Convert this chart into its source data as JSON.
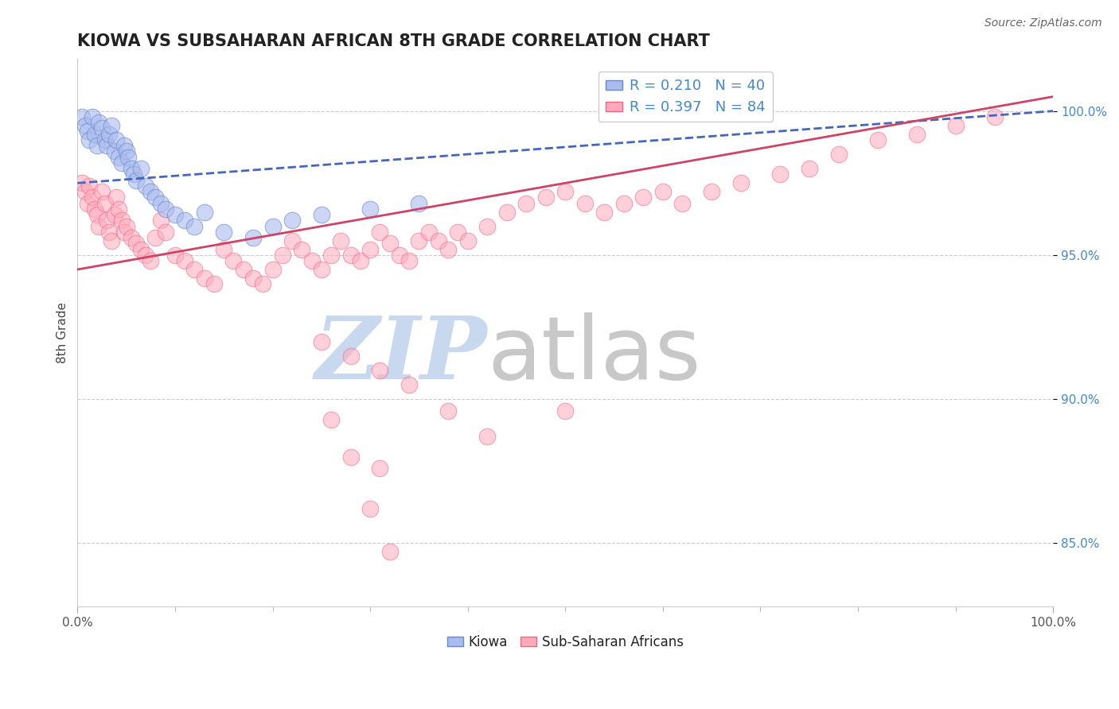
{
  "title": "KIOWA VS SUBSAHARAN AFRICAN 8TH GRADE CORRELATION CHART",
  "source_text": "Source: ZipAtlas.com",
  "ylabel": "8th Grade",
  "legend_labels": [
    "Kiowa",
    "Sub-Saharan Africans"
  ],
  "legend_r_n": [
    {
      "r": 0.21,
      "n": 40
    },
    {
      "r": 0.397,
      "n": 84
    }
  ],
  "x_min": 0.0,
  "x_max": 1.0,
  "y_min": 0.828,
  "y_max": 1.018,
  "y_ticks": [
    0.85,
    0.9,
    0.95,
    1.0
  ],
  "y_tick_labels": [
    "85.0%",
    "90.0%",
    "95.0%",
    "100.0%"
  ],
  "x_tick_labels": [
    "0.0%",
    "100.0%"
  ],
  "blue_color": "#aabbee",
  "pink_color": "#ffaabb",
  "blue_edge_color": "#6688cc",
  "pink_edge_color": "#ee6688",
  "blue_line_color": "#4466bb",
  "pink_line_color": "#cc4466",
  "watermark_zip_color": "#c8d8ee",
  "watermark_atlas_color": "#c8c8c8",
  "kiowa_x": [
    0.005,
    0.008,
    0.01,
    0.012,
    0.015,
    0.018,
    0.02,
    0.022,
    0.025,
    0.028,
    0.03,
    0.032,
    0.035,
    0.038,
    0.04,
    0.042,
    0.045,
    0.048,
    0.05,
    0.052,
    0.055,
    0.058,
    0.06,
    0.065,
    0.07,
    0.075,
    0.08,
    0.085,
    0.09,
    0.1,
    0.11,
    0.12,
    0.13,
    0.15,
    0.18,
    0.2,
    0.22,
    0.25,
    0.3,
    0.35
  ],
  "kiowa_y": [
    0.998,
    0.995,
    0.993,
    0.99,
    0.998,
    0.992,
    0.988,
    0.996,
    0.994,
    0.99,
    0.988,
    0.992,
    0.995,
    0.986,
    0.99,
    0.984,
    0.982,
    0.988,
    0.986,
    0.984,
    0.98,
    0.978,
    0.976,
    0.98,
    0.974,
    0.972,
    0.97,
    0.968,
    0.966,
    0.964,
    0.962,
    0.96,
    0.965,
    0.958,
    0.956,
    0.96,
    0.962,
    0.964,
    0.966,
    0.968
  ],
  "pink_x": [
    0.005,
    0.008,
    0.01,
    0.012,
    0.015,
    0.018,
    0.02,
    0.022,
    0.025,
    0.028,
    0.03,
    0.032,
    0.035,
    0.038,
    0.04,
    0.042,
    0.045,
    0.048,
    0.05,
    0.055,
    0.06,
    0.065,
    0.07,
    0.075,
    0.08,
    0.085,
    0.09,
    0.1,
    0.11,
    0.12,
    0.13,
    0.14,
    0.15,
    0.16,
    0.17,
    0.18,
    0.19,
    0.2,
    0.21,
    0.22,
    0.23,
    0.24,
    0.25,
    0.26,
    0.27,
    0.28,
    0.29,
    0.3,
    0.31,
    0.32,
    0.33,
    0.34,
    0.35,
    0.36,
    0.37,
    0.38,
    0.39,
    0.4,
    0.42,
    0.44,
    0.46,
    0.48,
    0.5,
    0.52,
    0.54,
    0.56,
    0.58,
    0.6,
    0.62,
    0.65,
    0.68,
    0.72,
    0.75,
    0.78,
    0.82,
    0.86,
    0.9,
    0.94,
    0.25,
    0.28,
    0.31,
    0.34,
    0.38,
    0.42
  ],
  "pink_y": [
    0.975,
    0.972,
    0.968,
    0.974,
    0.97,
    0.966,
    0.964,
    0.96,
    0.972,
    0.968,
    0.962,
    0.958,
    0.955,
    0.964,
    0.97,
    0.966,
    0.962,
    0.958,
    0.96,
    0.956,
    0.954,
    0.952,
    0.95,
    0.948,
    0.956,
    0.962,
    0.958,
    0.95,
    0.948,
    0.945,
    0.942,
    0.94,
    0.952,
    0.948,
    0.945,
    0.942,
    0.94,
    0.945,
    0.95,
    0.955,
    0.952,
    0.948,
    0.945,
    0.95,
    0.955,
    0.95,
    0.948,
    0.952,
    0.958,
    0.954,
    0.95,
    0.948,
    0.955,
    0.958,
    0.955,
    0.952,
    0.958,
    0.955,
    0.96,
    0.965,
    0.968,
    0.97,
    0.972,
    0.968,
    0.965,
    0.968,
    0.97,
    0.972,
    0.968,
    0.972,
    0.975,
    0.978,
    0.98,
    0.985,
    0.99,
    0.992,
    0.995,
    0.998,
    0.92,
    0.915,
    0.91,
    0.905,
    0.896,
    0.887
  ],
  "pink_outliers_x": [
    0.26,
    0.28,
    0.31,
    0.5,
    0.3,
    0.32
  ],
  "pink_outliers_y": [
    0.893,
    0.88,
    0.876,
    0.896,
    0.862,
    0.847
  ],
  "blue_trend_x0": 0.0,
  "blue_trend_y0": 0.975,
  "blue_trend_x1": 1.0,
  "blue_trend_y1": 1.0,
  "pink_trend_x0": 0.0,
  "pink_trend_y0": 0.945,
  "pink_trend_x1": 1.0,
  "pink_trend_y1": 1.005
}
